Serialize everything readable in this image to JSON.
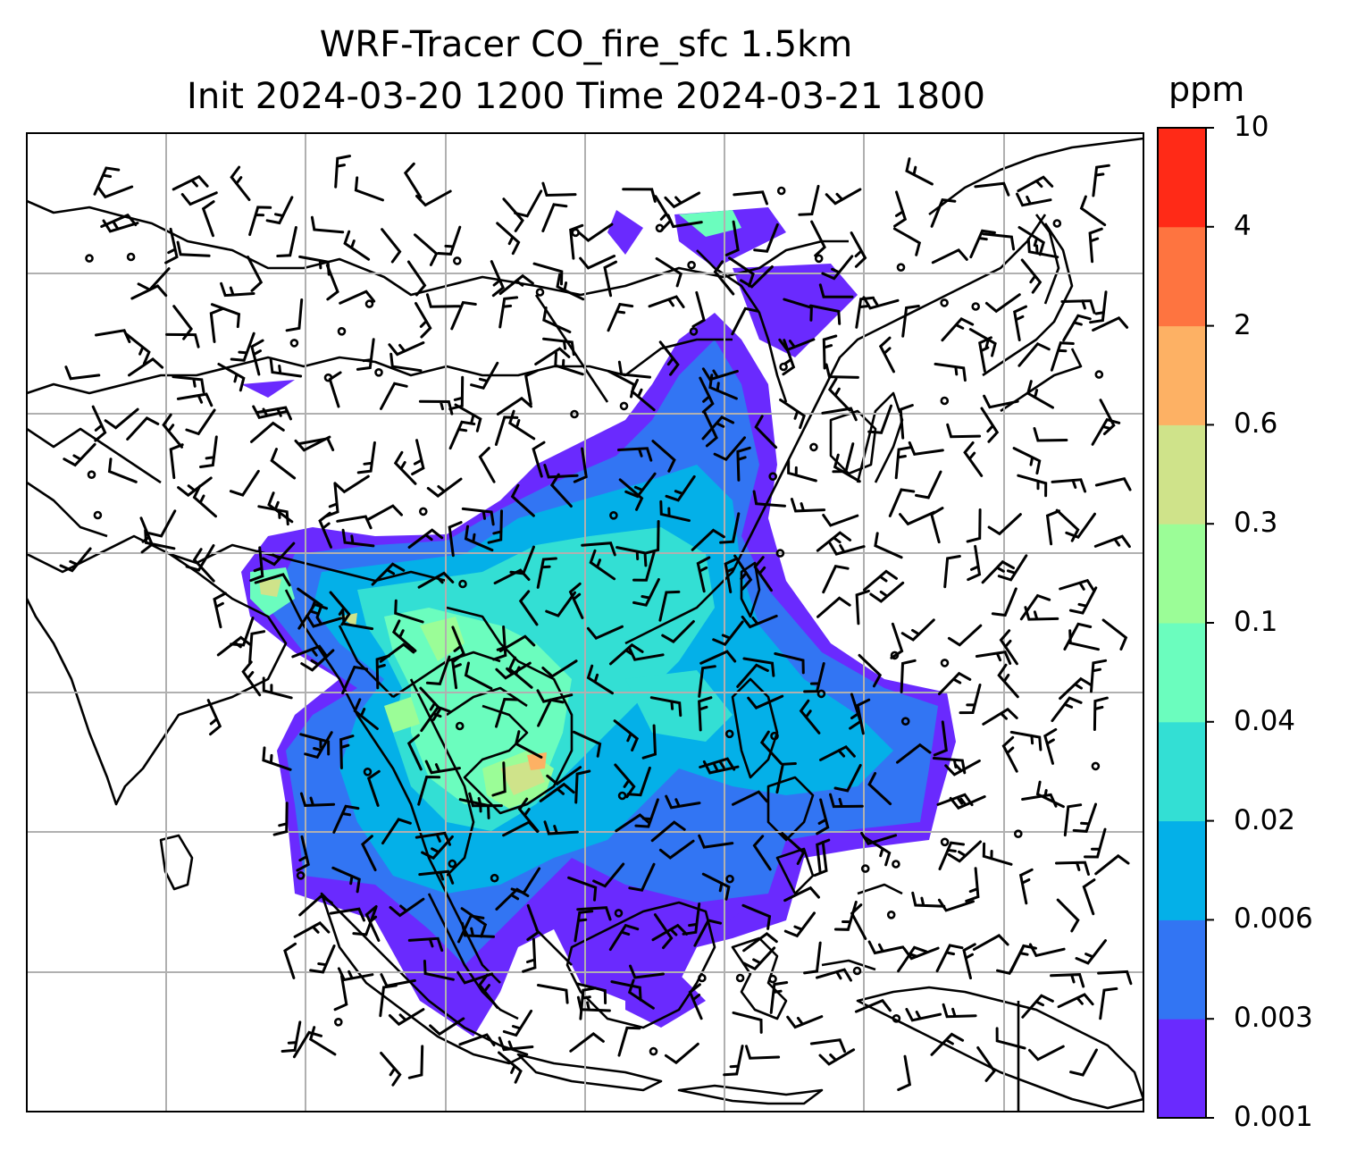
{
  "title": {
    "line1": "WRF-Tracer CO_fire_sfc 1.5km",
    "line2": "Init 2024-03-20 1200 Time 2024-03-21 1800"
  },
  "colorbar": {
    "unit": "ppm",
    "levels": [
      "0.001",
      "0.003",
      "0.006",
      "0.02",
      "0.04",
      "0.1",
      "0.3",
      "0.6",
      "2",
      "4",
      "10"
    ],
    "colors": [
      "#6a2afe",
      "#3275f3",
      "#04b0e8",
      "#33dfd4",
      "#6bfdbe",
      "#9bfd97",
      "#cfe38a",
      "#fdb164",
      "#fe7440",
      "#ff2a17"
    ]
  },
  "map": {
    "gridlines": true,
    "background": "#ffffff",
    "coastline_color": "#000000",
    "gridline_color": "#b0b0b0"
  }
}
